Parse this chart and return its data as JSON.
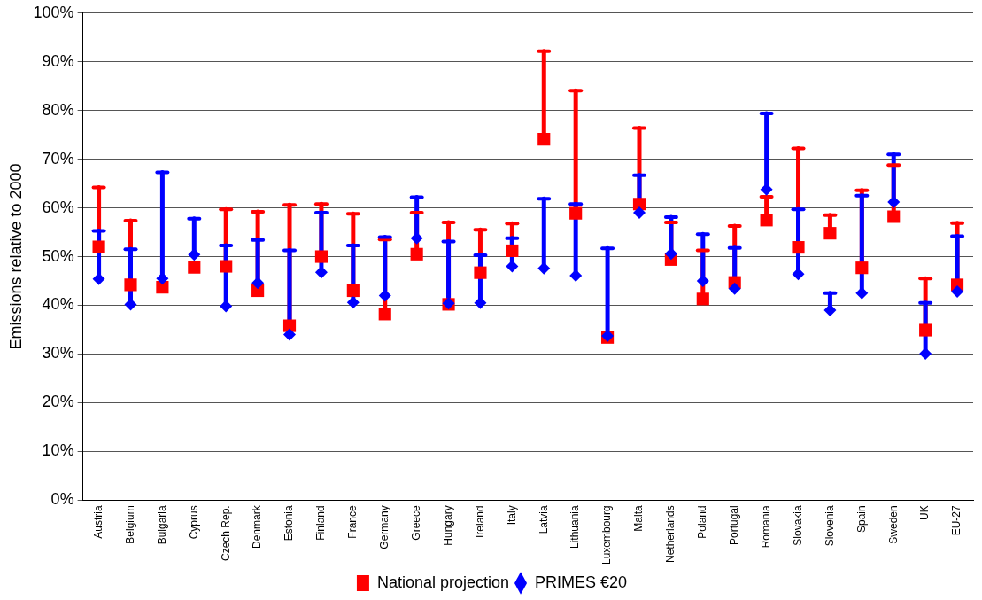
{
  "chart_data": {
    "type": "scatter",
    "ylabel": "Emissions relative to 2000",
    "categories": [
      "Austria",
      "Belgium",
      "Bulgaria",
      "Cyprus",
      "Czech Rep.",
      "Denmark",
      "Estonia",
      "Finland",
      "France",
      "Germany",
      "Greece",
      "Hungary",
      "Ireland",
      "Italy",
      "Latvia",
      "Lithuania",
      "Luxembourg",
      "Malta",
      "Netherlands",
      "Poland",
      "Portugal",
      "Romania",
      "Slovakia",
      "Slovenia",
      "Spain",
      "Sweden",
      "UK",
      "EU-27"
    ],
    "series": [
      {
        "name": "National projection",
        "color": "#ff0000",
        "marker": "square",
        "values": [
          52,
          44.2,
          43.7,
          47.8,
          48,
          43,
          35.8,
          50,
          43,
          38.2,
          50.5,
          40.2,
          46.7,
          51.2,
          74.1,
          58.9,
          33.4,
          60.8,
          49.4,
          41.3,
          44.7,
          57.5,
          51.9,
          54.8,
          47.7,
          58.2,
          34.9,
          44.2
        ],
        "errors": [
          [
            52,
            64.2
          ],
          [
            44.2,
            57.4
          ],
          null,
          null,
          [
            48,
            59.7
          ],
          [
            43,
            59.2
          ],
          [
            35.8,
            60.6
          ],
          [
            50,
            60.8
          ],
          [
            43,
            58.8
          ],
          [
            38.2,
            53.5
          ],
          [
            50.5,
            59
          ],
          [
            40.2,
            57
          ],
          [
            46.7,
            55.5
          ],
          [
            51.2,
            56.8
          ],
          [
            74.1,
            92.2
          ],
          [
            58.9,
            84.1
          ],
          null,
          [
            60.8,
            76.4
          ],
          [
            49.4,
            57
          ],
          [
            41.3,
            51.3
          ],
          [
            44.7,
            56.3
          ],
          [
            57.5,
            62.3
          ],
          [
            51.9,
            72.2
          ],
          [
            54.8,
            58.5
          ],
          [
            47.7,
            63.6
          ],
          [
            58.2,
            68.8
          ],
          [
            34.9,
            45.5
          ],
          [
            44.2,
            56.9
          ]
        ]
      },
      {
        "name": "PRIMES €20",
        "color": "#0000ff",
        "marker": "diamond",
        "values": [
          45.4,
          40.2,
          45.5,
          50.4,
          39.8,
          44.6,
          34,
          46.8,
          40.6,
          42,
          53.8,
          40.4,
          40.5,
          48,
          47.6,
          46.1,
          33.7,
          59,
          50.6,
          45,
          43.4,
          63.8,
          46.4,
          39,
          42.5,
          61.2,
          30.1,
          42.8
        ],
        "errors": [
          [
            45.4,
            55.3
          ],
          [
            40.2,
            51.5
          ],
          [
            45.5,
            67.3
          ],
          [
            50.4,
            57.8
          ],
          [
            39.8,
            52.3
          ],
          [
            44.6,
            53.4
          ],
          [
            34,
            51.3
          ],
          [
            46.8,
            59
          ],
          [
            40.6,
            52.3
          ],
          [
            42,
            54
          ],
          [
            53.8,
            62.2
          ],
          [
            40.4,
            53.1
          ],
          [
            40.5,
            50.3
          ],
          [
            48,
            53.8
          ],
          [
            47.6,
            61.9
          ],
          [
            46.1,
            60.8
          ],
          [
            33.7,
            51.7
          ],
          [
            59,
            66.7
          ],
          [
            50.6,
            58.1
          ],
          [
            45,
            54.6
          ],
          [
            43.4,
            51.8
          ],
          [
            63.8,
            79.4
          ],
          [
            46.4,
            59.7
          ],
          [
            39,
            42.5
          ],
          [
            42.5,
            62.5
          ],
          [
            61.2,
            71
          ],
          [
            30.1,
            40.5
          ],
          [
            42.8,
            54.2
          ]
        ]
      }
    ],
    "ylim": [
      0,
      100
    ],
    "yticks": [
      {
        "value": 0,
        "label": "0%"
      },
      {
        "value": 10,
        "label": "10%"
      },
      {
        "value": 20,
        "label": "20%"
      },
      {
        "value": 30,
        "label": "30%"
      },
      {
        "value": 40,
        "label": "40%"
      },
      {
        "value": 50,
        "label": "50%"
      },
      {
        "value": 60,
        "label": "60%"
      },
      {
        "value": 70,
        "label": "70%"
      },
      {
        "value": 80,
        "label": "80%"
      },
      {
        "value": 90,
        "label": "90%"
      },
      {
        "value": 100,
        "label": "100%"
      }
    ],
    "grid": "y",
    "legend": "bottom"
  }
}
